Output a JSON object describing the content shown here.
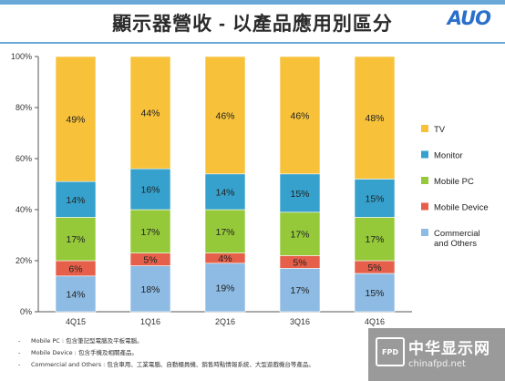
{
  "header": {
    "title": "顯示器營收 - 以產品應用別區分",
    "logo_text": "AUO"
  },
  "chart_data": {
    "type": "bar",
    "stacked": true,
    "categories": [
      "4Q15",
      "1Q16",
      "2Q16",
      "3Q16",
      "4Q16"
    ],
    "series": [
      {
        "name": "Commercial and Others",
        "color": "#8dbbe3",
        "values": [
          14,
          18,
          19,
          17,
          15
        ]
      },
      {
        "name": "Mobile Device",
        "color": "#e65f4a",
        "values": [
          6,
          5,
          4,
          5,
          5
        ]
      },
      {
        "name": "Mobile PC",
        "color": "#95c93a",
        "values": [
          17,
          17,
          17,
          17,
          17
        ]
      },
      {
        "name": "Monitor",
        "color": "#35a1cc",
        "values": [
          14,
          16,
          14,
          15,
          15
        ]
      },
      {
        "name": "TV",
        "color": "#f7c23a",
        "values": [
          49,
          44,
          46,
          46,
          48
        ]
      }
    ],
    "value_labels": [
      [
        "14%",
        "18%",
        "19%",
        "17%",
        "15%"
      ],
      [
        "6%",
        "5%",
        "4%",
        "5%",
        "5%"
      ],
      [
        "17%",
        "17%",
        "17%",
        "17%",
        "17%"
      ],
      [
        "14%",
        "16%",
        "14%",
        "15%",
        "15%"
      ],
      [
        "49%",
        "44%",
        "46%",
        "46%",
        "48%"
      ]
    ],
    "legend": [
      {
        "label": "TV",
        "color": "#f7c23a"
      },
      {
        "label": "Monitor",
        "color": "#35a1cc"
      },
      {
        "label": "Mobile PC",
        "color": "#95c93a"
      },
      {
        "label": "Mobile Device",
        "color": "#e65f4a"
      },
      {
        "label_lines": [
          "Commercial",
          "and Others"
        ],
        "color": "#8dbbe3"
      }
    ],
    "y_ticks": [
      "0%",
      "20%",
      "40%",
      "60%",
      "80%",
      "100%"
    ],
    "ylim": [
      0,
      100
    ],
    "grid": false,
    "legend_position": "right"
  },
  "notes": [
    "Mobile PC : 包含筆記型電腦及平板電腦。",
    "Mobile Device : 包含手機及相關產品。",
    "Commercial and Others : 包含車用、工業電腦、自動櫃員機、銷售時點情報系統、大型遊戲機台等產品。"
  ],
  "watermark": {
    "badge": "FPD",
    "name": "中华显示网",
    "url": "chinafpd.net"
  },
  "colors": {
    "accent": "#2a6fc9",
    "title_bar": "#6aa8d8"
  }
}
